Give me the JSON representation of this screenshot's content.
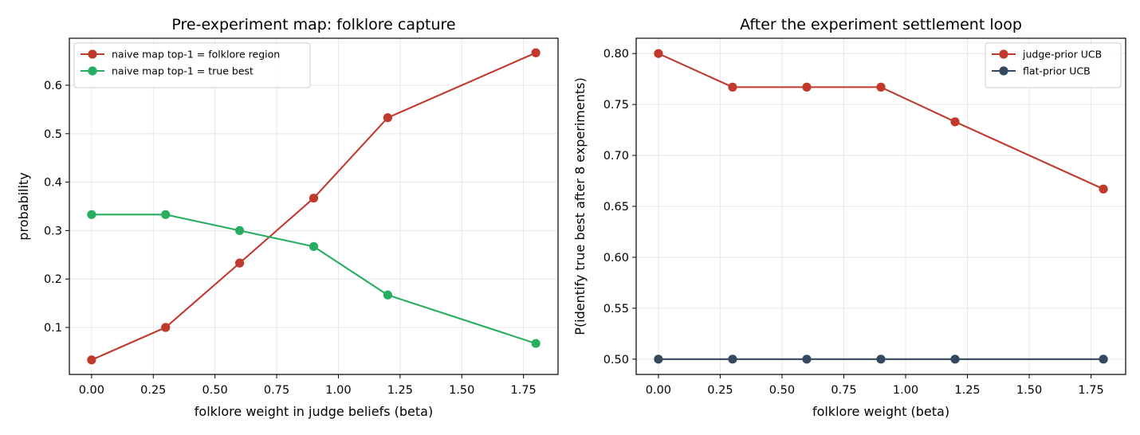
{
  "colors": {
    "red": "#c0392b",
    "green": "#27ae60",
    "dark": "#34495e"
  },
  "chart_data": [
    {
      "type": "line",
      "title": "Pre-experiment map: folklore capture",
      "xlabel": "folklore weight in judge beliefs (beta)",
      "ylabel": "probability",
      "xlim": [
        -0.09,
        1.89
      ],
      "ylim": [
        0.003,
        0.697
      ],
      "xticks": [
        0.0,
        0.25,
        0.5,
        0.75,
        1.0,
        1.25,
        1.5,
        1.75
      ],
      "xtick_labels": [
        "0.00",
        "0.25",
        "0.50",
        "0.75",
        "1.00",
        "1.25",
        "1.50",
        "1.75"
      ],
      "yticks": [
        0.1,
        0.2,
        0.3,
        0.4,
        0.5,
        0.6
      ],
      "ytick_labels": [
        "0.1",
        "0.2",
        "0.3",
        "0.4",
        "0.5",
        "0.6"
      ],
      "grid": true,
      "legend": "top-left",
      "x": [
        0.0,
        0.3,
        0.6,
        0.9,
        1.2,
        1.8
      ],
      "series": [
        {
          "name": "naive map top-1 = folklore region",
          "color": "#c0392b",
          "values": [
            0.033,
            0.1,
            0.233,
            0.367,
            0.533,
            0.667
          ]
        },
        {
          "name": "naive map top-1 = true best",
          "color": "#27ae60",
          "values": [
            0.333,
            0.333,
            0.3,
            0.267,
            0.167,
            0.067
          ]
        }
      ]
    },
    {
      "type": "line",
      "title": "After the experiment settlement loop",
      "xlabel": "folklore weight (beta)",
      "ylabel": "P(identify true best after 8 experiments)",
      "xlim": [
        -0.09,
        1.89
      ],
      "ylim": [
        0.485,
        0.815
      ],
      "xticks": [
        0.0,
        0.25,
        0.5,
        0.75,
        1.0,
        1.25,
        1.5,
        1.75
      ],
      "xtick_labels": [
        "0.00",
        "0.25",
        "0.50",
        "0.75",
        "1.00",
        "1.25",
        "1.50",
        "1.75"
      ],
      "yticks": [
        0.5,
        0.55,
        0.6,
        0.65,
        0.7,
        0.75,
        0.8
      ],
      "ytick_labels": [
        "0.50",
        "0.55",
        "0.60",
        "0.65",
        "0.70",
        "0.75",
        "0.80"
      ],
      "grid": true,
      "legend": "top-right",
      "x": [
        0.0,
        0.3,
        0.6,
        0.9,
        1.2,
        1.8
      ],
      "series": [
        {
          "name": "judge-prior UCB",
          "color": "#c0392b",
          "values": [
            0.8,
            0.767,
            0.767,
            0.767,
            0.733,
            0.667
          ]
        },
        {
          "name": "flat-prior UCB",
          "color": "#34495e",
          "values": [
            0.5,
            0.5,
            0.5,
            0.5,
            0.5,
            0.5
          ]
        }
      ]
    }
  ]
}
